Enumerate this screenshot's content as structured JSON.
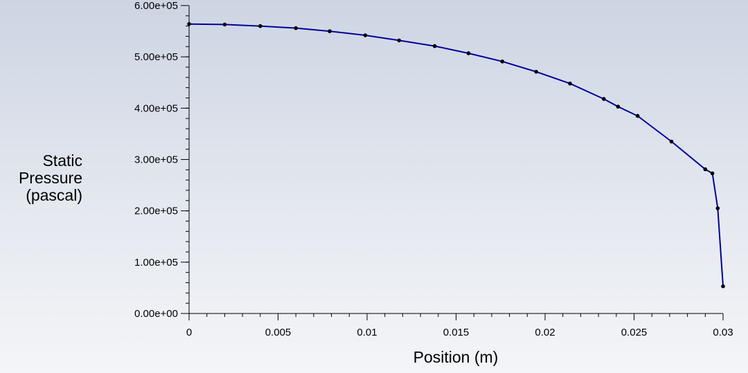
{
  "chart_data": {
    "type": "line",
    "xlabel": "Position (m)",
    "ylabel": [
      "Static",
      "Pressure",
      "(pascal)"
    ],
    "xlim": [
      0,
      0.03
    ],
    "ylim": [
      0,
      600000
    ],
    "x_ticks": [
      {
        "value": 0,
        "label": "0"
      },
      {
        "value": 0.005,
        "label": "0.005"
      },
      {
        "value": 0.01,
        "label": "0.01"
      },
      {
        "value": 0.015,
        "label": "0.015"
      },
      {
        "value": 0.02,
        "label": "0.02"
      },
      {
        "value": 0.025,
        "label": "0.025"
      },
      {
        "value": 0.03,
        "label": "0.03"
      }
    ],
    "y_ticks": [
      {
        "value": 0,
        "label": "0.00e+00"
      },
      {
        "value": 100000,
        "label": "1.00e+05"
      },
      {
        "value": 200000,
        "label": "2.00e+05"
      },
      {
        "value": 300000,
        "label": "3.00e+05"
      },
      {
        "value": 400000,
        "label": "4.00e+05"
      },
      {
        "value": 500000,
        "label": "5.00e+05"
      },
      {
        "value": 600000,
        "label": "6.00e+05"
      }
    ],
    "grid": false,
    "legend": "none",
    "series": [
      {
        "color": "#000099",
        "marker_color": "#000000",
        "x": [
          0,
          0.002,
          0.004,
          0.006,
          0.0079,
          0.0099,
          0.0118,
          0.0138,
          0.0157,
          0.0176,
          0.0195,
          0.0214,
          0.0233,
          0.0241,
          0.0252,
          0.0271,
          0.029,
          0.0294,
          0.0297,
          0.03
        ],
        "y": [
          564000,
          563000,
          560000,
          556000,
          550000,
          542000,
          532000,
          521000,
          507000,
          491000,
          471000,
          448000,
          418000,
          403000,
          385000,
          335000,
          281000,
          273000,
          205000,
          53000
        ]
      }
    ]
  }
}
